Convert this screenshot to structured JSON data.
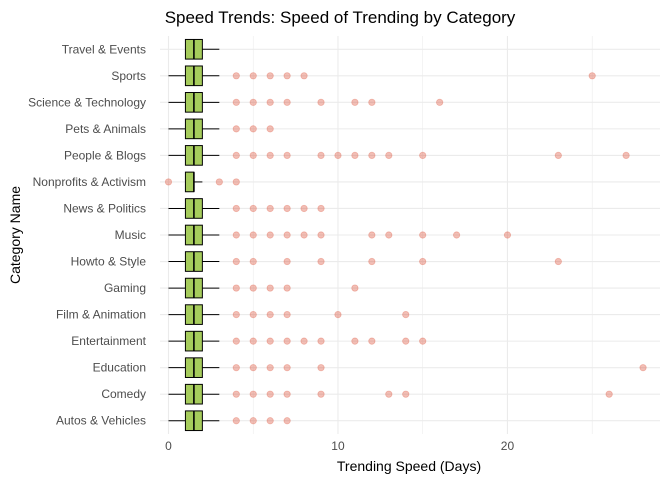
{
  "chart_data": {
    "type": "boxplot",
    "orientation": "horizontal",
    "title": "Speed Trends: Speed of Trending by Category",
    "xlabel": "Trending Speed (Days)",
    "ylabel": "Category Name",
    "xlim": [
      -0.5,
      29
    ],
    "x_ticks": [
      0,
      10,
      20
    ],
    "grid": true,
    "colors": {
      "box_fill": "#a6cc5c",
      "box_stroke": "#000000",
      "outlier": "#d9452c",
      "gridline": "#ebebeb"
    },
    "categories": [
      "Autos & Vehicles",
      "Comedy",
      "Education",
      "Entertainment",
      "Film & Animation",
      "Gaming",
      "Howto & Style",
      "Music",
      "News & Politics",
      "Nonprofits & Activism",
      "People & Blogs",
      "Pets & Animals",
      "Science & Technology",
      "Sports",
      "Travel & Events"
    ],
    "boxes": [
      {
        "category": "Autos & Vehicles",
        "whisker_low": 0,
        "q1": 1,
        "median": 1.5,
        "q3": 2,
        "whisker_high": 3,
        "outliers": [
          4,
          5,
          6,
          7
        ]
      },
      {
        "category": "Comedy",
        "whisker_low": 0,
        "q1": 1,
        "median": 1.5,
        "q3": 2,
        "whisker_high": 3,
        "outliers": [
          4,
          5,
          6,
          7,
          9,
          13,
          14,
          26
        ]
      },
      {
        "category": "Education",
        "whisker_low": 0,
        "q1": 1,
        "median": 1.5,
        "q3": 2,
        "whisker_high": 3,
        "outliers": [
          4,
          5,
          6,
          7,
          9,
          28
        ]
      },
      {
        "category": "Entertainment",
        "whisker_low": 0,
        "q1": 1,
        "median": 1.5,
        "q3": 2,
        "whisker_high": 3,
        "outliers": [
          4,
          5,
          6,
          7,
          8,
          9,
          11,
          12,
          14,
          15
        ]
      },
      {
        "category": "Film & Animation",
        "whisker_low": 0,
        "q1": 1,
        "median": 1.5,
        "q3": 2,
        "whisker_high": 3,
        "outliers": [
          4,
          5,
          6,
          7,
          10,
          14
        ]
      },
      {
        "category": "Gaming",
        "whisker_low": 0,
        "q1": 1,
        "median": 1.5,
        "q3": 2,
        "whisker_high": 3,
        "outliers": [
          4,
          5,
          6,
          7,
          11
        ]
      },
      {
        "category": "Howto & Style",
        "whisker_low": 0,
        "q1": 1,
        "median": 1.5,
        "q3": 2,
        "whisker_high": 3,
        "outliers": [
          4,
          5,
          7,
          9,
          12,
          15,
          23
        ]
      },
      {
        "category": "Music",
        "whisker_low": 0,
        "q1": 1,
        "median": 1.5,
        "q3": 2,
        "whisker_high": 3,
        "outliers": [
          4,
          5,
          6,
          7,
          8,
          9,
          12,
          13,
          15,
          17,
          20
        ]
      },
      {
        "category": "News & Politics",
        "whisker_low": 0,
        "q1": 1,
        "median": 1.5,
        "q3": 2,
        "whisker_high": 3,
        "outliers": [
          4,
          5,
          6,
          7,
          8,
          9
        ]
      },
      {
        "category": "Nonprofits & Activism",
        "whisker_low": 1,
        "q1": 1,
        "median": 1.5,
        "q3": 1.5,
        "whisker_high": 2,
        "outliers": [
          0,
          3,
          4
        ]
      },
      {
        "category": "People & Blogs",
        "whisker_low": 0,
        "q1": 1,
        "median": 1.5,
        "q3": 2,
        "whisker_high": 3,
        "outliers": [
          4,
          5,
          6,
          7,
          9,
          10,
          11,
          12,
          13,
          15,
          23,
          27
        ]
      },
      {
        "category": "Pets & Animals",
        "whisker_low": 0,
        "q1": 1,
        "median": 1.5,
        "q3": 2,
        "whisker_high": 3,
        "outliers": [
          4,
          5,
          6
        ]
      },
      {
        "category": "Science & Technology",
        "whisker_low": 0,
        "q1": 1,
        "median": 1.5,
        "q3": 2,
        "whisker_high": 3,
        "outliers": [
          4,
          5,
          6,
          7,
          9,
          11,
          12,
          16
        ]
      },
      {
        "category": "Sports",
        "whisker_low": 0,
        "q1": 1,
        "median": 1.5,
        "q3": 2,
        "whisker_high": 3,
        "outliers": [
          4,
          5,
          6,
          7,
          8,
          25
        ]
      },
      {
        "category": "Travel & Events",
        "whisker_low": 1,
        "q1": 1,
        "median": 1.5,
        "q3": 2,
        "whisker_high": 3,
        "outliers": []
      }
    ]
  }
}
